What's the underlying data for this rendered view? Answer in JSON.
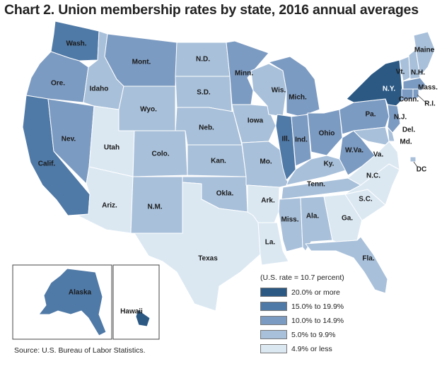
{
  "title": "Chart 2. Union membership rates by state, 2016 annual averages",
  "source": "Source: U.S. Bureau of Labor Statistics.",
  "legend": {
    "note": "(U.S. rate = 10.7 percent)",
    "items": [
      {
        "label": "20.0% or more",
        "color": "#2b5984"
      },
      {
        "label": "15.0% to 19.9%",
        "color": "#4f79a6"
      },
      {
        "label": "10.0% to 14.9%",
        "color": "#7c9bc2"
      },
      {
        "label": "5.0% to 9.9%",
        "color": "#a8c0da"
      },
      {
        "label": "4.9% or less",
        "color": "#dbe8f2"
      }
    ]
  },
  "states": {
    "wa": {
      "label": "Wash.",
      "bin": 1
    },
    "or": {
      "label": "Ore.",
      "bin": 2
    },
    "ca": {
      "label": "Calif.",
      "bin": 1
    },
    "nv": {
      "label": "Nev.",
      "bin": 2
    },
    "id": {
      "label": "Idaho",
      "bin": 3
    },
    "mt": {
      "label": "Mont.",
      "bin": 2
    },
    "wy": {
      "label": "Wyo.",
      "bin": 3
    },
    "ut": {
      "label": "Utah",
      "bin": 4
    },
    "az": {
      "label": "Ariz.",
      "bin": 4
    },
    "co": {
      "label": "Colo.",
      "bin": 3
    },
    "nm": {
      "label": "N.M.",
      "bin": 3
    },
    "nd": {
      "label": "N.D.",
      "bin": 3
    },
    "sd": {
      "label": "S.D.",
      "bin": 3
    },
    "ne": {
      "label": "Neb.",
      "bin": 3
    },
    "ks": {
      "label": "Kan.",
      "bin": 3
    },
    "ok": {
      "label": "Okla.",
      "bin": 3
    },
    "tx": {
      "label": "Texas",
      "bin": 4
    },
    "mn": {
      "label": "Minn.",
      "bin": 2
    },
    "ia": {
      "label": "Iowa",
      "bin": 3
    },
    "mo": {
      "label": "Mo.",
      "bin": 3
    },
    "ar": {
      "label": "Ark.",
      "bin": 4
    },
    "la": {
      "label": "La.",
      "bin": 4
    },
    "wi": {
      "label": "Wis.",
      "bin": 3
    },
    "il": {
      "label": "Ill.",
      "bin": 1
    },
    "mi": {
      "label": "Mich.",
      "bin": 2
    },
    "in": {
      "label": "Ind.",
      "bin": 2
    },
    "oh": {
      "label": "Ohio",
      "bin": 2
    },
    "ky": {
      "label": "Ky.",
      "bin": 3
    },
    "tn": {
      "label": "Tenn.",
      "bin": 3
    },
    "ms": {
      "label": "Miss.",
      "bin": 3
    },
    "al": {
      "label": "Ala.",
      "bin": 3
    },
    "ga": {
      "label": "Ga.",
      "bin": 4
    },
    "fl": {
      "label": "Fla.",
      "bin": 3
    },
    "sc": {
      "label": "S.C.",
      "bin": 4
    },
    "nc": {
      "label": "N.C.",
      "bin": 4
    },
    "va": {
      "label": "Va.",
      "bin": 4
    },
    "wv": {
      "label": "W.Va.",
      "bin": 2
    },
    "pa": {
      "label": "Pa.",
      "bin": 2
    },
    "ny": {
      "label": "N.Y.",
      "bin": 0
    },
    "vt": {
      "label": "Vt.",
      "bin": 3
    },
    "nh": {
      "label": "N.H.",
      "bin": 3
    },
    "me": {
      "label": "Maine",
      "bin": 3
    },
    "ma": {
      "label": "Mass.",
      "bin": 2
    },
    "ri": {
      "label": "R.I.",
      "bin": 2
    },
    "ct": {
      "label": "Conn.",
      "bin": 2
    },
    "nj": {
      "label": "N.J.",
      "bin": 2
    },
    "de": {
      "label": "Del.",
      "bin": 3
    },
    "md": {
      "label": "Md.",
      "bin": 3
    },
    "dc": {
      "label": "DC",
      "bin": 3
    },
    "ak": {
      "label": "Alaska",
      "bin": 1
    },
    "hi": {
      "label": "Hawaii",
      "bin": 0
    }
  }
}
